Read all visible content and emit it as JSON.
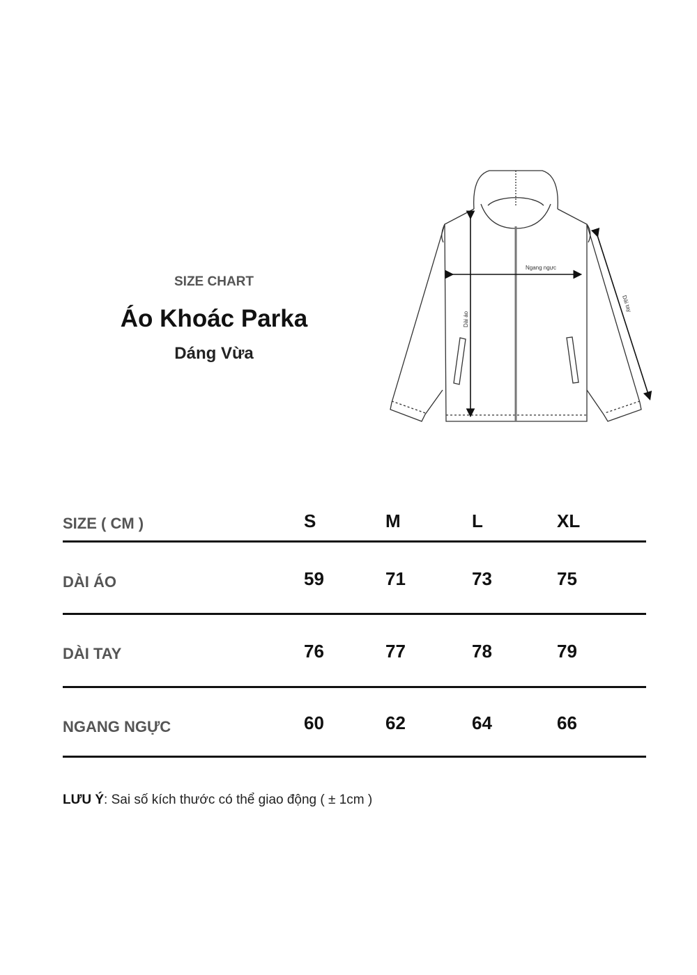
{
  "header": {
    "eyebrow": "SIZE CHART",
    "title": "Áo Khoác Parka",
    "subtitle": "Dáng Vừa"
  },
  "diagram": {
    "chest_label": "Ngang ngực",
    "length_label": "Dài áo",
    "sleeve_label": "Dài tay"
  },
  "table": {
    "header_label": "SIZE ( CM )",
    "sizes": [
      "S",
      "M",
      "L",
      "XL"
    ],
    "rows": [
      {
        "label": "DÀI ÁO",
        "values": [
          "59",
          "71",
          "73",
          "75"
        ]
      },
      {
        "label": "DÀI TAY",
        "values": [
          "76",
          "77",
          "78",
          "79"
        ]
      },
      {
        "label": "NGANG NGỰC",
        "values": [
          "60",
          "62",
          "64",
          "66"
        ]
      }
    ]
  },
  "note": {
    "label": "LƯU Ý",
    "text": ": Sai số kích thước có thể giao động ( ± 1cm )"
  }
}
